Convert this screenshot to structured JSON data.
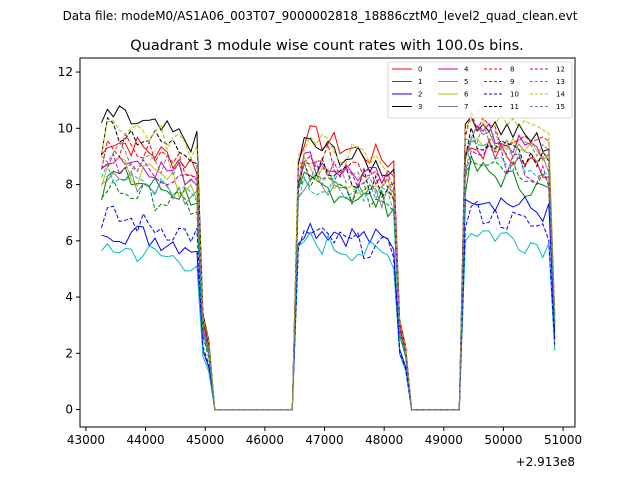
{
  "chart_data": {
    "type": "line",
    "suptitle": "Data file: modeM0/AS1A06_003T07_9000002818_18886cztM0_level2_quad_clean.evt",
    "title": "Quadrant 3 module wise count rates with 100.0s bins.",
    "xlabel": "",
    "ylabel": "",
    "x_offset_label": "+2.913e8",
    "xlim": [
      42900,
      51200
    ],
    "ylim": [
      -0.62,
      12.5
    ],
    "xticks": [
      43000,
      44000,
      45000,
      46000,
      47000,
      48000,
      49000,
      50000,
      51000
    ],
    "xtick_labels": [
      "43000",
      "44000",
      "45000",
      "46000",
      "47000",
      "48000",
      "49000",
      "50000",
      "51000"
    ],
    "yticks": [
      0,
      2,
      4,
      6,
      8,
      10,
      12
    ],
    "ytick_labels": [
      "0",
      "2",
      "4",
      "6",
      "8",
      "10",
      "12"
    ],
    "legend_position": "upper right",
    "segments": [
      {
        "start": 43260,
        "end": 44960
      },
      {
        "start": 46560,
        "end": 48260
      },
      {
        "start": 49360,
        "end": 50860
      }
    ],
    "series": [
      {
        "name": "0",
        "color": "#ff0000",
        "dash": false,
        "levels": [
          9.0,
          9.1,
          8.8
        ]
      },
      {
        "name": "1",
        "color": "#008000",
        "dash": false,
        "levels": [
          7.8,
          7.5,
          8.0
        ]
      },
      {
        "name": "2",
        "color": "#0000ff",
        "dash": false,
        "levels": [
          6.0,
          6.1,
          7.2
        ]
      },
      {
        "name": "3",
        "color": "#000000",
        "dash": false,
        "levels": [
          9.8,
          8.8,
          9.7
        ]
      },
      {
        "name": "4",
        "color": "#bf00bf",
        "dash": false,
        "levels": [
          8.5,
          8.3,
          9.3
        ]
      },
      {
        "name": "5",
        "color": "#00bfbf",
        "dash": false,
        "levels": [
          5.4,
          5.6,
          6.0
        ]
      },
      {
        "name": "6",
        "color": "#bfbf00",
        "dash": false,
        "levels": [
          8.1,
          8.0,
          9.2
        ]
      },
      {
        "name": "7",
        "color": "#808080",
        "dash": false,
        "levels": [
          7.8,
          7.7,
          9.1
        ]
      },
      {
        "name": "8",
        "color": "#ff0000",
        "dash": true,
        "levels": [
          8.9,
          8.6,
          9.5
        ]
      },
      {
        "name": "9",
        "color": "#008000",
        "dash": true,
        "levels": [
          7.4,
          7.6,
          8.5
        ]
      },
      {
        "name": "10",
        "color": "#0000ff",
        "dash": true,
        "levels": [
          6.4,
          5.8,
          6.6
        ]
      },
      {
        "name": "11",
        "color": "#000000",
        "dash": true,
        "levels": [
          9.4,
          8.1,
          9.0
        ]
      },
      {
        "name": "12",
        "color": "#bf00bf",
        "dash": true,
        "levels": [
          8.3,
          8.2,
          8.6
        ]
      },
      {
        "name": "13",
        "color": "#00bfbf",
        "dash": true,
        "levels": [
          7.9,
          7.6,
          8.7
        ]
      },
      {
        "name": "14",
        "color": "#bfbf00",
        "dash": true,
        "levels": [
          9.6,
          8.9,
          9.9
        ]
      },
      {
        "name": "15",
        "color": "#808080",
        "dash": true,
        "levels": [
          8.6,
          8.0,
          9.3
        ]
      }
    ]
  }
}
